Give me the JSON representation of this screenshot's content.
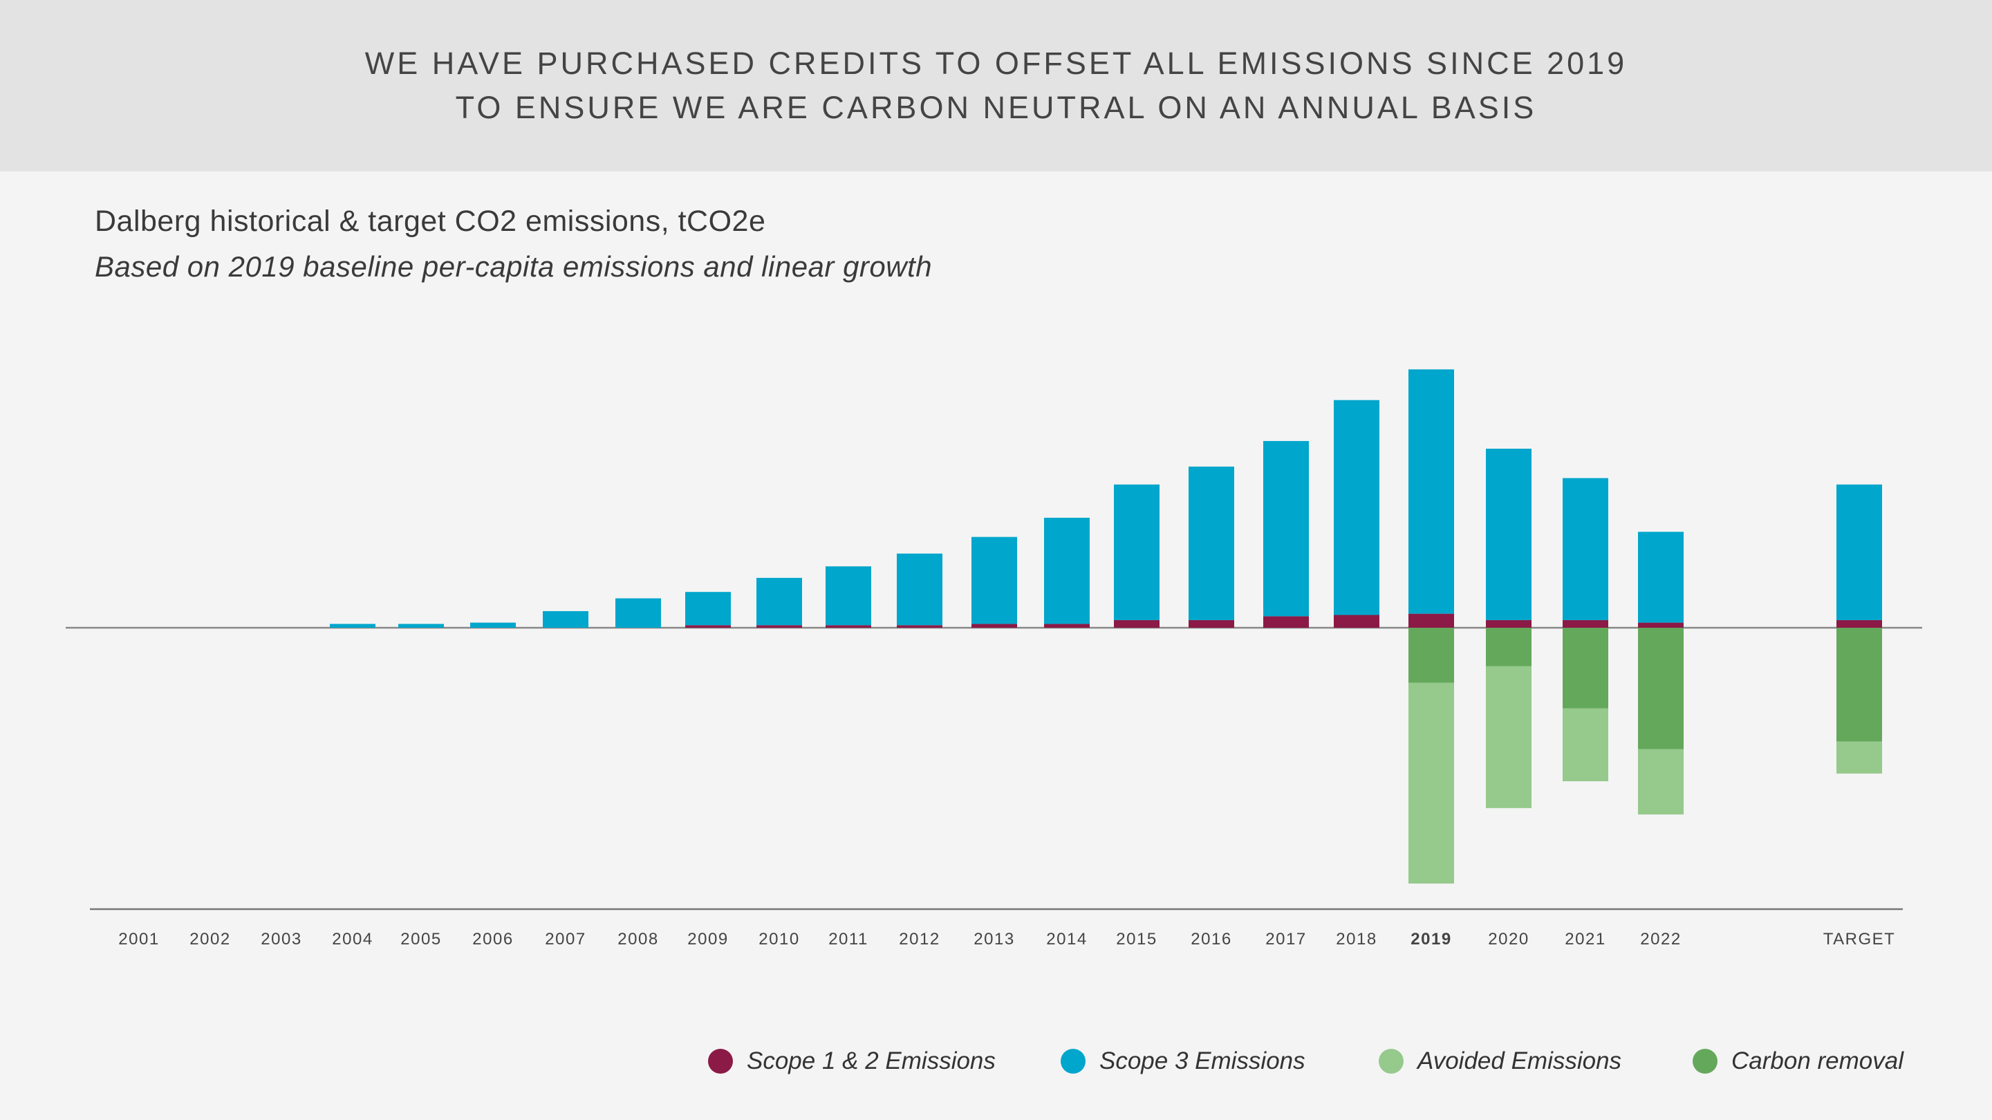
{
  "header": {
    "line1": "WE HAVE PURCHASED CREDITS TO OFFSET ALL EMISSIONS SINCE 2019",
    "line2": "TO ENSURE WE ARE CARBON NEUTRAL ON AN ANNUAL BASIS"
  },
  "colors": {
    "scope12": "#8b1a47",
    "scope3": "#00a6cc",
    "avoided": "#96c98c",
    "removal": "#64a85c",
    "axis": "#888888",
    "label": "#444444"
  },
  "chart_data": {
    "type": "bar",
    "title": "Dalberg historical & target CO2 emissions, tCO2e",
    "subtitle": "Based on 2019 baseline per-capita emissions and linear growth",
    "categories": [
      "2001",
      "2002",
      "2003",
      "2004",
      "2005",
      "2006",
      "2007",
      "2008",
      "2009",
      "2010",
      "2011",
      "2012",
      "2013",
      "2014",
      "2015",
      "2016",
      "2017",
      "2018",
      "2019",
      "2020",
      "2021",
      "2022",
      "TARGET"
    ],
    "bold_category": "2019",
    "stacked": true,
    "series": [
      {
        "name": "Scope 1 & 2 Emissions",
        "color_key": "scope12",
        "values": [
          0,
          0,
          0,
          0,
          0,
          0,
          0,
          0,
          2,
          2,
          2,
          2,
          3,
          3,
          6,
          6,
          9,
          10,
          11,
          6,
          6,
          4,
          6
        ]
      },
      {
        "name": "Scope 3 Emissions",
        "color_key": "scope3",
        "values": [
          0,
          0,
          0,
          3,
          3,
          4,
          13,
          23,
          26,
          37,
          46,
          56,
          68,
          83,
          106,
          120,
          137,
          168,
          191,
          134,
          111,
          71,
          106
        ]
      },
      {
        "name": "Carbon removal",
        "color_key": "removal",
        "values": [
          0,
          0,
          0,
          0,
          0,
          0,
          0,
          0,
          0,
          0,
          0,
          0,
          0,
          0,
          0,
          0,
          0,
          0,
          -43,
          -30,
          -63,
          -95,
          -89
        ]
      },
      {
        "name": "Avoided Emissions",
        "color_key": "avoided",
        "values": [
          0,
          0,
          0,
          0,
          0,
          0,
          0,
          0,
          0,
          0,
          0,
          0,
          0,
          0,
          0,
          0,
          0,
          0,
          -157,
          -111,
          -57,
          -51,
          -25
        ]
      }
    ],
    "legend_order": [
      "Scope 1 & 2 Emissions",
      "Scope 3 Emissions",
      "Avoided Emissions",
      "Carbon removal"
    ],
    "legend_position": "bottom-right",
    "y_axis_visible": false,
    "grid": false,
    "ylim": [
      -232,
      202
    ]
  }
}
